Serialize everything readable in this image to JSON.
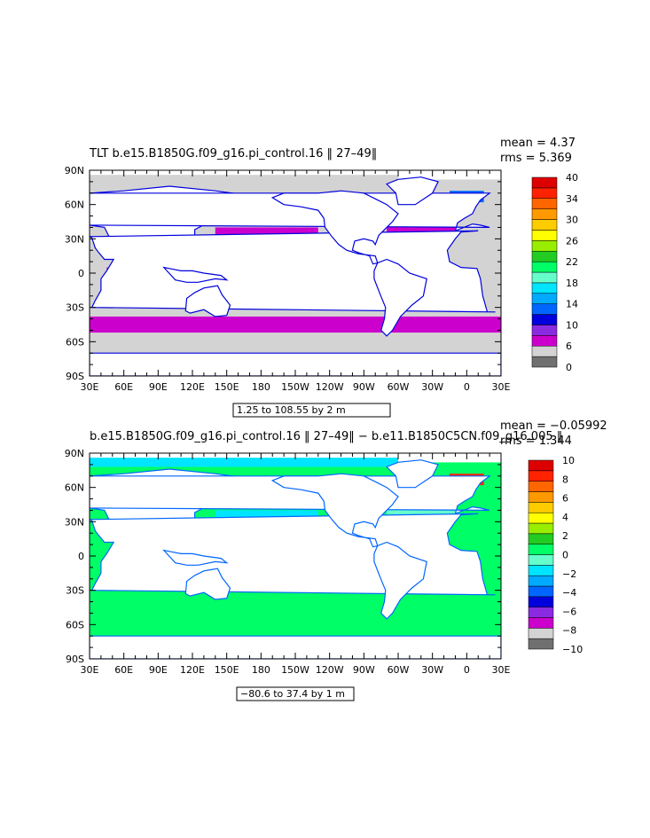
{
  "colors": {
    "land": "#ffffff",
    "ice": "#d3d3d3",
    "frame": "#000000"
  },
  "chart_data": [
    {
      "type": "heatmap",
      "title": "TLT b.e15.B1850G.f09_g16.pi_control.16 ‖ 27–49‖",
      "mean_label": "mean = 4.37",
      "rms_label": "rms = 5.369",
      "range_label": "1.25 to 108.55 by 2 m",
      "xlim": [
        30,
        390
      ],
      "ylim": [
        -90,
        90
      ],
      "x_tick_values": [
        30,
        60,
        90,
        120,
        150,
        180,
        210,
        240,
        270,
        300,
        330,
        360,
        390
      ],
      "x_tick_labels": [
        "30E",
        "60E",
        "90E",
        "120E",
        "150E",
        "180",
        "150W",
        "120W",
        "90W",
        "60W",
        "30W",
        "0",
        "30E"
      ],
      "y_tick_values": [
        90,
        60,
        30,
        0,
        -30,
        -60,
        -90
      ],
      "y_tick_labels": [
        "90N",
        "60N",
        "30N",
        "0",
        "30S",
        "60S",
        "90S"
      ],
      "colorbar": {
        "colors": [
          "#707070",
          "#d3d3d3",
          "#cc00cc",
          "#8a2be2",
          "#0000dd",
          "#0066ff",
          "#00aaff",
          "#00e5ff",
          "#66ffcc",
          "#00ff66",
          "#22cc22",
          "#99ee00",
          "#ffff00",
          "#ffcc00",
          "#ff9900",
          "#ff6600",
          "#ff2200",
          "#dd0000"
        ],
        "labels": [
          "0",
          "6",
          "10",
          "14",
          "18",
          "22",
          "26",
          "30",
          "34",
          "40"
        ]
      },
      "pattern": {
        "background": "#d3d3d3",
        "arctic": "#d3d3d3",
        "equatorial_band": "#cc00cc",
        "southern_band": "#cc00cc",
        "north_pacific_band": "#cc00cc",
        "north_atlantic": "#cc00cc",
        "subpolar_atlantic": "#0066ff",
        "labrador": "#00e5ff",
        "coastal": "#0000dd"
      }
    },
    {
      "type": "heatmap",
      "title": "b.e15.B1850G.f09_g16.pi_control.16 ‖ 27–49‖ − b.e11.B1850C5CN.f09_g16.005 ‖",
      "mean_label": "mean = −0.05992",
      "rms_label": "rms = 1.344",
      "range_label": "−80.6 to 37.4 by 1 m",
      "xlim": [
        30,
        390
      ],
      "ylim": [
        -90,
        90
      ],
      "x_tick_values": [
        30,
        60,
        90,
        120,
        150,
        180,
        210,
        240,
        270,
        300,
        330,
        360,
        390
      ],
      "x_tick_labels": [
        "30E",
        "60E",
        "90E",
        "120E",
        "150E",
        "180",
        "150W",
        "120W",
        "90W",
        "60W",
        "30W",
        "0",
        "30E"
      ],
      "y_tick_values": [
        90,
        60,
        30,
        0,
        -30,
        -60,
        -90
      ],
      "y_tick_labels": [
        "90N",
        "60N",
        "30N",
        "0",
        "30S",
        "60S",
        "90S"
      ],
      "colorbar": {
        "colors": [
          "#707070",
          "#d3d3d3",
          "#cc00cc",
          "#8a2be2",
          "#0000dd",
          "#0066ff",
          "#00aaff",
          "#00e5ff",
          "#66ffcc",
          "#00ff66",
          "#22cc22",
          "#99ee00",
          "#ffff00",
          "#ffcc00",
          "#ff9900",
          "#ff6600",
          "#ff2200",
          "#dd0000"
        ],
        "labels": [
          "−10",
          "−8",
          "−6",
          "−4",
          "−2",
          "0",
          "2",
          "4",
          "6",
          "8",
          "10"
        ]
      },
      "pattern": {
        "background": "#00ff66",
        "arctic": "#00e5ff",
        "equatorial_band": "#00e5ff",
        "southern_band": "#00ff66",
        "north_pacific_band": "#00e5ff",
        "north_atlantic": "#66ffcc",
        "subpolar_atlantic": "#ff2200",
        "labrador": "#dd0000",
        "coastal": "#0066ff"
      }
    }
  ]
}
